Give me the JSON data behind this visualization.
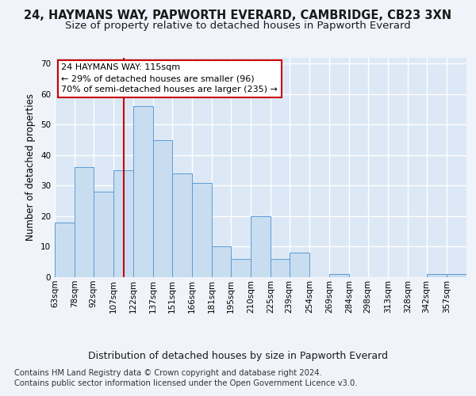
{
  "title1": "24, HAYMANS WAY, PAPWORTH EVERARD, CAMBRIDGE, CB23 3XN",
  "title2": "Size of property relative to detached houses in Papworth Everard",
  "xlabel": "Distribution of detached houses by size in Papworth Everard",
  "ylabel": "Number of detached properties",
  "footer1": "Contains HM Land Registry data © Crown copyright and database right 2024.",
  "footer2": "Contains public sector information licensed under the Open Government Licence v3.0.",
  "bin_labels": [
    "63sqm",
    "78sqm",
    "92sqm",
    "107sqm",
    "122sqm",
    "137sqm",
    "151sqm",
    "166sqm",
    "181sqm",
    "195sqm",
    "210sqm",
    "225sqm",
    "239sqm",
    "254sqm",
    "269sqm",
    "284sqm",
    "298sqm",
    "313sqm",
    "328sqm",
    "342sqm",
    "357sqm"
  ],
  "values": [
    18,
    36,
    28,
    35,
    56,
    45,
    34,
    31,
    10,
    6,
    20,
    6,
    8,
    0,
    1,
    0,
    0,
    0,
    0,
    1,
    1
  ],
  "bin_edges": [
    63,
    78,
    92,
    107,
    122,
    137,
    151,
    166,
    181,
    195,
    210,
    225,
    239,
    254,
    269,
    284,
    298,
    313,
    328,
    342,
    357,
    372
  ],
  "bar_color": "#c9ddf0",
  "bar_edge_color": "#5b9bd5",
  "vline_x": 115,
  "vline_color": "#cc0000",
  "annotation_text": "24 HAYMANS WAY: 115sqm\n← 29% of detached houses are smaller (96)\n70% of semi-detached houses are larger (235) →",
  "annotation_box_color": "#ffffff",
  "annotation_box_edge_color": "#cc0000",
  "ylim": [
    0,
    72
  ],
  "yticks": [
    0,
    10,
    20,
    30,
    40,
    50,
    60,
    70
  ],
  "bg_color": "#f0f4fa",
  "plot_bg_color": "#dce8f5",
  "grid_color": "#ffffff",
  "title1_fontsize": 10.5,
  "title2_fontsize": 9.5,
  "xlabel_fontsize": 9,
  "ylabel_fontsize": 8.5,
  "tick_fontsize": 7.5,
  "footer_fontsize": 7.2,
  "ann_fontsize": 8.0
}
